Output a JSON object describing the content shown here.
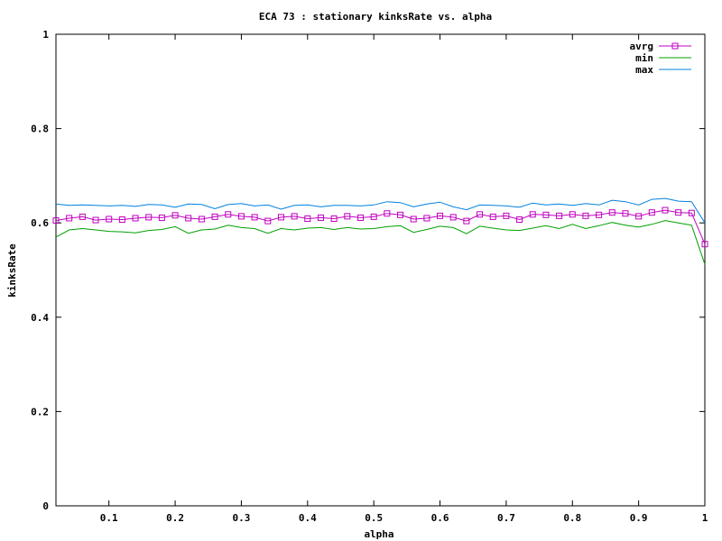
{
  "chart_data": {
    "type": "line",
    "title": "ECA 73 : stationary kinksRate vs. alpha",
    "xlabel": "alpha",
    "ylabel": "kinksRate",
    "xlim": [
      0.02,
      1.0
    ],
    "ylim": [
      0,
      1
    ],
    "x_ticks": [
      "0.1",
      "0.2",
      "0.3",
      "0.4",
      "0.5",
      "0.6",
      "0.7",
      "0.8",
      "0.9",
      "1"
    ],
    "y_ticks": [
      "0",
      "0.2",
      "0.4",
      "0.6",
      "0.8",
      "1"
    ],
    "grid": false,
    "legend": "top-right",
    "x": [
      0.02,
      0.04,
      0.06,
      0.08,
      0.1,
      0.12,
      0.14,
      0.16,
      0.18,
      0.2,
      0.22,
      0.24,
      0.26,
      0.28,
      0.3,
      0.32,
      0.34,
      0.36,
      0.38,
      0.4,
      0.42,
      0.44,
      0.46,
      0.48,
      0.5,
      0.52,
      0.54,
      0.56,
      0.58,
      0.6,
      0.62,
      0.64,
      0.66,
      0.68,
      0.7,
      0.72,
      0.74,
      0.76,
      0.78,
      0.8,
      0.82,
      0.84,
      0.86,
      0.88,
      0.9,
      0.92,
      0.94,
      0.96,
      0.98,
      1.0
    ],
    "series": [
      {
        "name": "avrg",
        "color": "#c000c0",
        "marker": "square",
        "values": [
          0.605,
          0.61,
          0.613,
          0.606,
          0.608,
          0.607,
          0.61,
          0.612,
          0.611,
          0.616,
          0.61,
          0.608,
          0.613,
          0.618,
          0.614,
          0.612,
          0.604,
          0.612,
          0.614,
          0.609,
          0.611,
          0.609,
          0.614,
          0.611,
          0.613,
          0.62,
          0.617,
          0.608,
          0.61,
          0.615,
          0.612,
          0.604,
          0.618,
          0.613,
          0.615,
          0.607,
          0.618,
          0.617,
          0.615,
          0.618,
          0.615,
          0.617,
          0.622,
          0.62,
          0.614,
          0.622,
          0.627,
          0.622,
          0.621,
          0.555
        ]
      },
      {
        "name": "min",
        "color": "#00a000",
        "values": [
          0.57,
          0.585,
          0.588,
          0.585,
          0.582,
          0.581,
          0.579,
          0.584,
          0.586,
          0.592,
          0.578,
          0.585,
          0.587,
          0.595,
          0.59,
          0.588,
          0.578,
          0.588,
          0.585,
          0.589,
          0.59,
          0.586,
          0.59,
          0.587,
          0.588,
          0.592,
          0.594,
          0.58,
          0.586,
          0.593,
          0.59,
          0.577,
          0.593,
          0.589,
          0.585,
          0.584,
          0.589,
          0.594,
          0.588,
          0.597,
          0.588,
          0.594,
          0.601,
          0.595,
          0.591,
          0.597,
          0.605,
          0.6,
          0.595,
          0.512
        ]
      },
      {
        "name": "max",
        "color": "#0080e0",
        "values": [
          0.64,
          0.637,
          0.638,
          0.637,
          0.636,
          0.637,
          0.635,
          0.639,
          0.638,
          0.633,
          0.64,
          0.639,
          0.63,
          0.639,
          0.641,
          0.636,
          0.638,
          0.629,
          0.637,
          0.638,
          0.634,
          0.637,
          0.637,
          0.636,
          0.638,
          0.645,
          0.643,
          0.634,
          0.64,
          0.644,
          0.634,
          0.628,
          0.638,
          0.637,
          0.636,
          0.633,
          0.642,
          0.638,
          0.64,
          0.637,
          0.641,
          0.638,
          0.648,
          0.645,
          0.638,
          0.65,
          0.652,
          0.646,
          0.645,
          0.6
        ]
      }
    ]
  }
}
